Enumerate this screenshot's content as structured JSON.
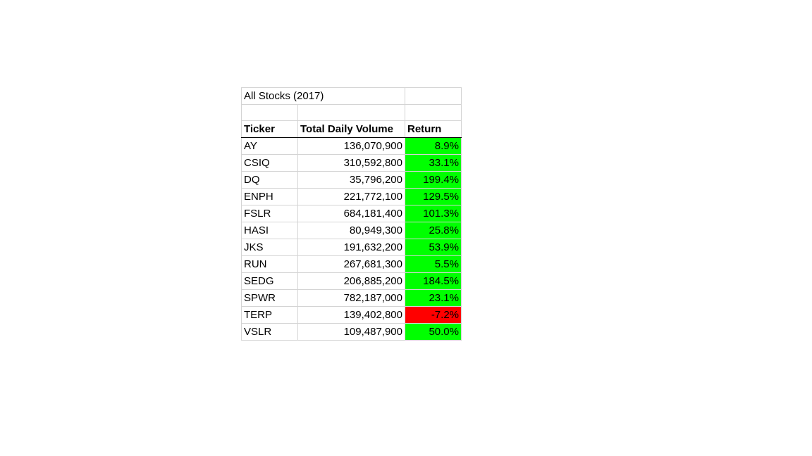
{
  "sheet": {
    "title": "All Stocks (2017)",
    "headers": [
      "Ticker",
      "Total Daily Volume",
      "Return"
    ],
    "rows": [
      {
        "ticker": "AY",
        "volume": "136,070,900",
        "return": "8.9%",
        "status": "positive"
      },
      {
        "ticker": "CSIQ",
        "volume": "310,592,800",
        "return": "33.1%",
        "status": "positive"
      },
      {
        "ticker": "DQ",
        "volume": "35,796,200",
        "return": "199.4%",
        "status": "positive"
      },
      {
        "ticker": "ENPH",
        "volume": "221,772,100",
        "return": "129.5%",
        "status": "positive"
      },
      {
        "ticker": "FSLR",
        "volume": "684,181,400",
        "return": "101.3%",
        "status": "positive"
      },
      {
        "ticker": "HASI",
        "volume": "80,949,300",
        "return": "25.8%",
        "status": "positive"
      },
      {
        "ticker": "JKS",
        "volume": "191,632,200",
        "return": "53.9%",
        "status": "positive"
      },
      {
        "ticker": "RUN",
        "volume": "267,681,300",
        "return": "5.5%",
        "status": "positive"
      },
      {
        "ticker": "SEDG",
        "volume": "206,885,200",
        "return": "184.5%",
        "status": "positive"
      },
      {
        "ticker": "SPWR",
        "volume": "782,187,000",
        "return": "23.1%",
        "status": "positive"
      },
      {
        "ticker": "TERP",
        "volume": "139,402,800",
        "return": "-7.2%",
        "status": "negative"
      },
      {
        "ticker": "VSLR",
        "volume": "109,487,900",
        "return": "50.0%",
        "status": "positive"
      }
    ]
  },
  "colors": {
    "positive": "#00ff00",
    "negative": "#ff0000",
    "gridline": "#d4d4d4"
  }
}
